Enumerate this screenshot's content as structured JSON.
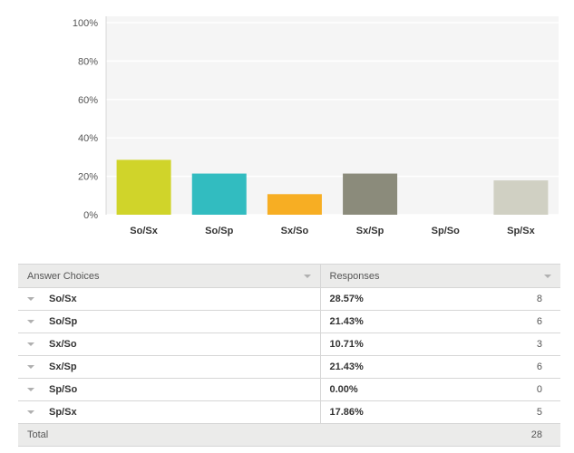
{
  "chart_data": {
    "type": "bar",
    "categories": [
      "So/Sx",
      "So/Sp",
      "Sx/So",
      "Sx/Sp",
      "Sp/So",
      "Sp/Sx"
    ],
    "values": [
      28.57,
      21.43,
      10.71,
      21.43,
      0.0,
      17.86
    ],
    "colors": [
      "#d0d42a",
      "#32bcc0",
      "#f7ae23",
      "#8b8b7b",
      "#e05c8a",
      "#d0d0c3"
    ],
    "ylim": [
      0,
      100
    ],
    "yticks": [
      "0%",
      "20%",
      "40%",
      "60%",
      "80%",
      "100%"
    ],
    "ytick_values": [
      0,
      20,
      40,
      60,
      80,
      100
    ],
    "grid": true,
    "background": "#f5f5f5"
  },
  "table": {
    "header_choice": "Answer Choices",
    "header_responses": "Responses",
    "rows": [
      {
        "choice": "So/Sx",
        "percent": "28.57%",
        "count": "8"
      },
      {
        "choice": "So/Sp",
        "percent": "21.43%",
        "count": "6"
      },
      {
        "choice": "Sx/So",
        "percent": "10.71%",
        "count": "3"
      },
      {
        "choice": "Sx/Sp",
        "percent": "21.43%",
        "count": "6"
      },
      {
        "choice": "Sp/So",
        "percent": "0.00%",
        "count": "0"
      },
      {
        "choice": "Sp/Sx",
        "percent": "17.86%",
        "count": "5"
      }
    ],
    "total_label": "Total",
    "total_count": "28"
  }
}
